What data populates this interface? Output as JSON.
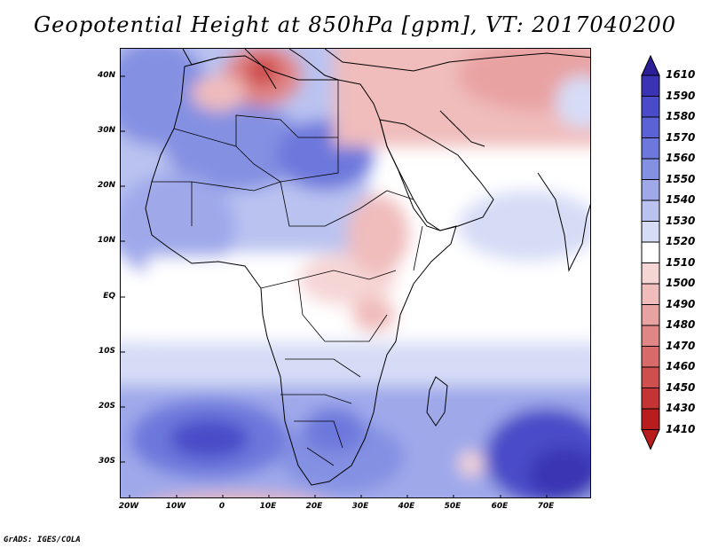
{
  "title": "Geopotential Height at 850hPa [gpm], VT: 2017040200",
  "credit": "GrADS: IGES/COLA",
  "latitude_labels": [
    "40N",
    "30N",
    "20N",
    "10N",
    "EQ",
    "10S",
    "20S",
    "30S"
  ],
  "longitude_labels": [
    "20W",
    "10W",
    "0",
    "10E",
    "20E",
    "30E",
    "40E",
    "50E",
    "60E",
    "70E"
  ],
  "map_extent": {
    "lon_min": -22,
    "lon_max": 80,
    "lat_min": -36,
    "lat_max": 45
  },
  "colorbar": {
    "levels": [
      "1610",
      "1590",
      "1580",
      "1570",
      "1560",
      "1550",
      "1540",
      "1530",
      "1520",
      "1510",
      "1500",
      "1490",
      "1480",
      "1470",
      "1460",
      "1450",
      "1430",
      "1410"
    ],
    "colors": [
      "#2a1f96",
      "#3a34b4",
      "#4a4bc8",
      "#5b62d4",
      "#6d78dc",
      "#8490e2",
      "#9fa9ea",
      "#bac3f0",
      "#d6dcf6",
      "#ffffff",
      "#f6d5d5",
      "#f0bcbc",
      "#e8a2a2",
      "#e08686",
      "#d86a6a",
      "#cf4e4e",
      "#c43434",
      "#b81c1c"
    ]
  },
  "regions": [
    {
      "name": "central-atlantic-low-field",
      "level": "1540"
    },
    {
      "name": "sahara-low",
      "level": "1550"
    },
    {
      "name": "mediterranean-low",
      "level": "1470"
    },
    {
      "name": "arabia-middle-east-field",
      "level": "1500"
    },
    {
      "name": "southern-ocean-high",
      "level": "1580"
    }
  ]
}
